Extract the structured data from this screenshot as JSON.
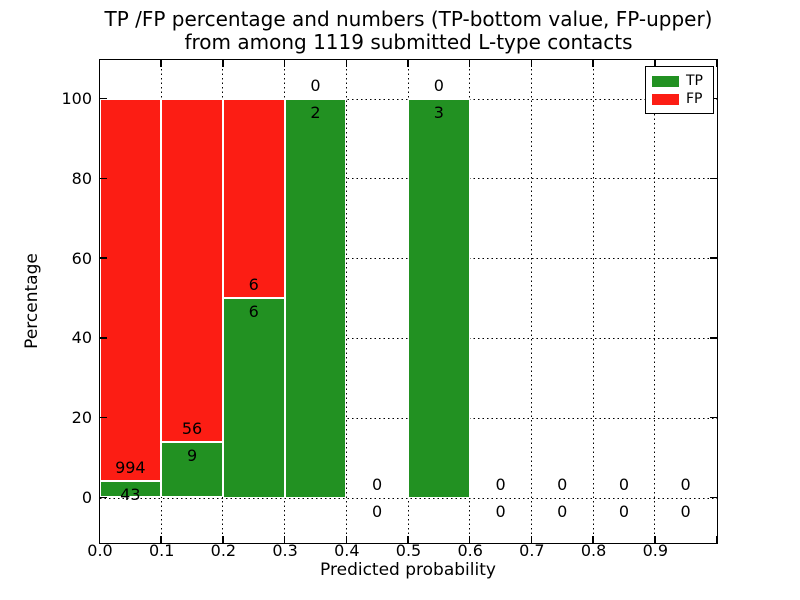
{
  "figure": {
    "title_line1": "TP /FP percentage and numbers (TP-bottom value, FP-upper)",
    "title_line2": "from among 1119 submitted L-type contacts",
    "xlabel": "Predicted probability",
    "ylabel": "Percentage"
  },
  "chart_data": {
    "type": "bar",
    "stacked": true,
    "title": "TP /FP percentage and numbers (TP-bottom value, FP-upper) from among 1119 submitted L-type contacts",
    "xlabel": "Predicted probability",
    "ylabel": "Percentage",
    "xlim": [
      0.0,
      1.0
    ],
    "ylim": [
      -11,
      110
    ],
    "x_tick_labels": [
      "0.0",
      "0.1",
      "0.2",
      "0.3",
      "0.4",
      "0.5",
      "0.6",
      "0.7",
      "0.8",
      "0.9"
    ],
    "y_tick_values": [
      0,
      20,
      40,
      60,
      80,
      100
    ],
    "grid": "dotted",
    "total_submitted_contacts": 1119,
    "legend": {
      "position": "upper right",
      "entries": [
        {
          "label": "TP",
          "color": "#229122"
        },
        {
          "label": "FP",
          "color": "#fc1d14"
        }
      ]
    },
    "bins": [
      {
        "x_start": 0.0,
        "x_end": 0.1,
        "tp_count": 43,
        "fp_count": 994,
        "tp_pct": 4.15,
        "fp_pct": 95.85
      },
      {
        "x_start": 0.1,
        "x_end": 0.2,
        "tp_count": 9,
        "fp_count": 56,
        "tp_pct": 13.85,
        "fp_pct": 86.15
      },
      {
        "x_start": 0.2,
        "x_end": 0.3,
        "tp_count": 6,
        "fp_count": 6,
        "tp_pct": 50,
        "fp_pct": 50
      },
      {
        "x_start": 0.3,
        "x_end": 0.4,
        "tp_count": 2,
        "fp_count": 0,
        "tp_pct": 100,
        "fp_pct": 0
      },
      {
        "x_start": 0.4,
        "x_end": 0.5,
        "tp_count": 0,
        "fp_count": 0,
        "tp_pct": 0,
        "fp_pct": 0
      },
      {
        "x_start": 0.5,
        "x_end": 0.6,
        "tp_count": 3,
        "fp_count": 0,
        "tp_pct": 100,
        "fp_pct": 0
      },
      {
        "x_start": 0.6,
        "x_end": 0.7,
        "tp_count": 0,
        "fp_count": 0,
        "tp_pct": 0,
        "fp_pct": 0
      },
      {
        "x_start": 0.7,
        "x_end": 0.8,
        "tp_count": 0,
        "fp_count": 0,
        "tp_pct": 0,
        "fp_pct": 0
      },
      {
        "x_start": 0.8,
        "x_end": 0.9,
        "tp_count": 0,
        "fp_count": 0,
        "tp_pct": 0,
        "fp_pct": 0
      },
      {
        "x_start": 0.9,
        "x_end": 1.0,
        "tp_count": 0,
        "fp_count": 0,
        "tp_pct": 0,
        "fp_pct": 0
      }
    ]
  }
}
